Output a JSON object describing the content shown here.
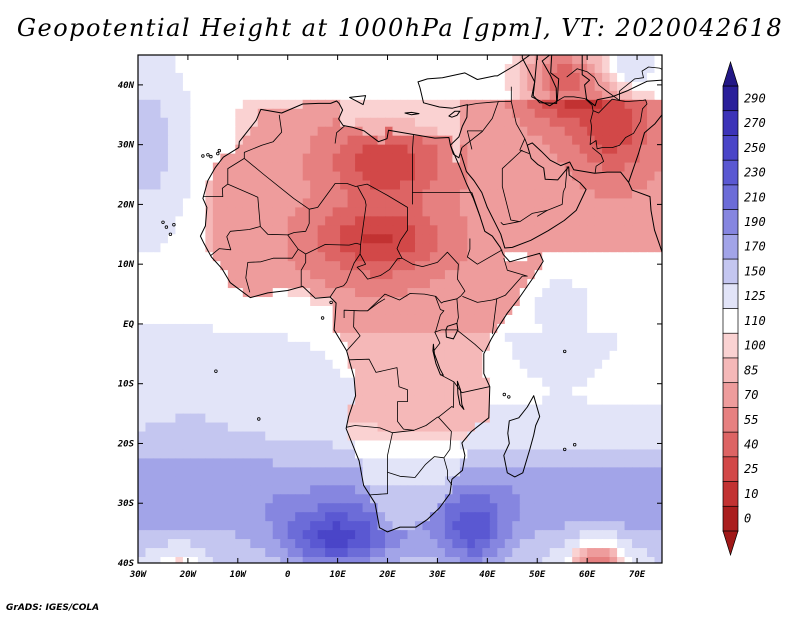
{
  "title": "Geopotential Height at 1000hPa [gpm], VT: 2020042618",
  "footer": "GrADS: IGES/COLA",
  "map": {
    "lon_range": [
      -30,
      75
    ],
    "lat_range": [
      -40,
      45
    ],
    "lat_ticks": [
      {
        "value": 40,
        "label": "40N"
      },
      {
        "value": 30,
        "label": "30N"
      },
      {
        "value": 20,
        "label": "20N"
      },
      {
        "value": 10,
        "label": "10N"
      },
      {
        "value": 0,
        "label": "EQ"
      },
      {
        "value": -10,
        "label": "10S"
      },
      {
        "value": -20,
        "label": "20S"
      },
      {
        "value": -30,
        "label": "30S"
      },
      {
        "value": -40,
        "label": "40S"
      }
    ],
    "lon_ticks": [
      {
        "value": -30,
        "label": "30W"
      },
      {
        "value": -20,
        "label": "20W"
      },
      {
        "value": -10,
        "label": "10W"
      },
      {
        "value": 0,
        "label": "0"
      },
      {
        "value": 10,
        "label": "10E"
      },
      {
        "value": 20,
        "label": "20E"
      },
      {
        "value": 30,
        "label": "30E"
      },
      {
        "value": 40,
        "label": "40E"
      },
      {
        "value": 50,
        "label": "50E"
      },
      {
        "value": 60,
        "label": "60E"
      },
      {
        "value": 70,
        "label": "70E"
      }
    ]
  },
  "colorbar": {
    "labels": [
      "290",
      "270",
      "250",
      "230",
      "210",
      "190",
      "170",
      "150",
      "125",
      "110",
      "100",
      "85",
      "70",
      "55",
      "40",
      "25",
      "10",
      "0"
    ],
    "colors": [
      "#2a1f9a",
      "#3c33b8",
      "#4a45c8",
      "#5a58d2",
      "#6c6cd8",
      "#8686e0",
      "#a2a4e8",
      "#c4c6f0",
      "#e2e4f8",
      "#ffffff",
      "#fad2d2",
      "#f5b8b8",
      "#ee9c9c",
      "#e68080",
      "#dd6464",
      "#d24848",
      "#c23232",
      "#aa1e1e"
    ]
  },
  "contour_levels": [
    0,
    10,
    25,
    40,
    55,
    70,
    85,
    100,
    110,
    125,
    150,
    170,
    190,
    210,
    230,
    250,
    270,
    290
  ],
  "field_centers": [
    {
      "lon": 20,
      "lat": 27,
      "amp": -48,
      "sx": 11,
      "sy": 6
    },
    {
      "lon": 18,
      "lat": 14,
      "amp": -52,
      "sx": 12,
      "sy": 6
    },
    {
      "lon": 55,
      "lat": 41,
      "amp": -70,
      "sx": 8,
      "sy": 6
    },
    {
      "lon": 65,
      "lat": 33,
      "amp": -45,
      "sx": 8,
      "sy": 8
    },
    {
      "lon": 62,
      "lat": -40,
      "amp": -95,
      "sx": 6,
      "sy": 4
    },
    {
      "lon": -22,
      "lat": -40,
      "amp": -45,
      "sx": 5,
      "sy": 3
    },
    {
      "lon": 10,
      "lat": -36,
      "amp": 95,
      "sx": 11,
      "sy": 5
    },
    {
      "lon": 37,
      "lat": -35,
      "amp": 75,
      "sx": 7,
      "sy": 6
    },
    {
      "lon": -28,
      "lat": 30,
      "amp": 45,
      "sx": 6,
      "sy": 12
    },
    {
      "lon": 68,
      "lat": 43,
      "amp": 40,
      "sx": 4,
      "sy": 3
    },
    {
      "lon": 55,
      "lat": 2,
      "amp": 20,
      "sx": 10,
      "sy": 10
    }
  ]
}
